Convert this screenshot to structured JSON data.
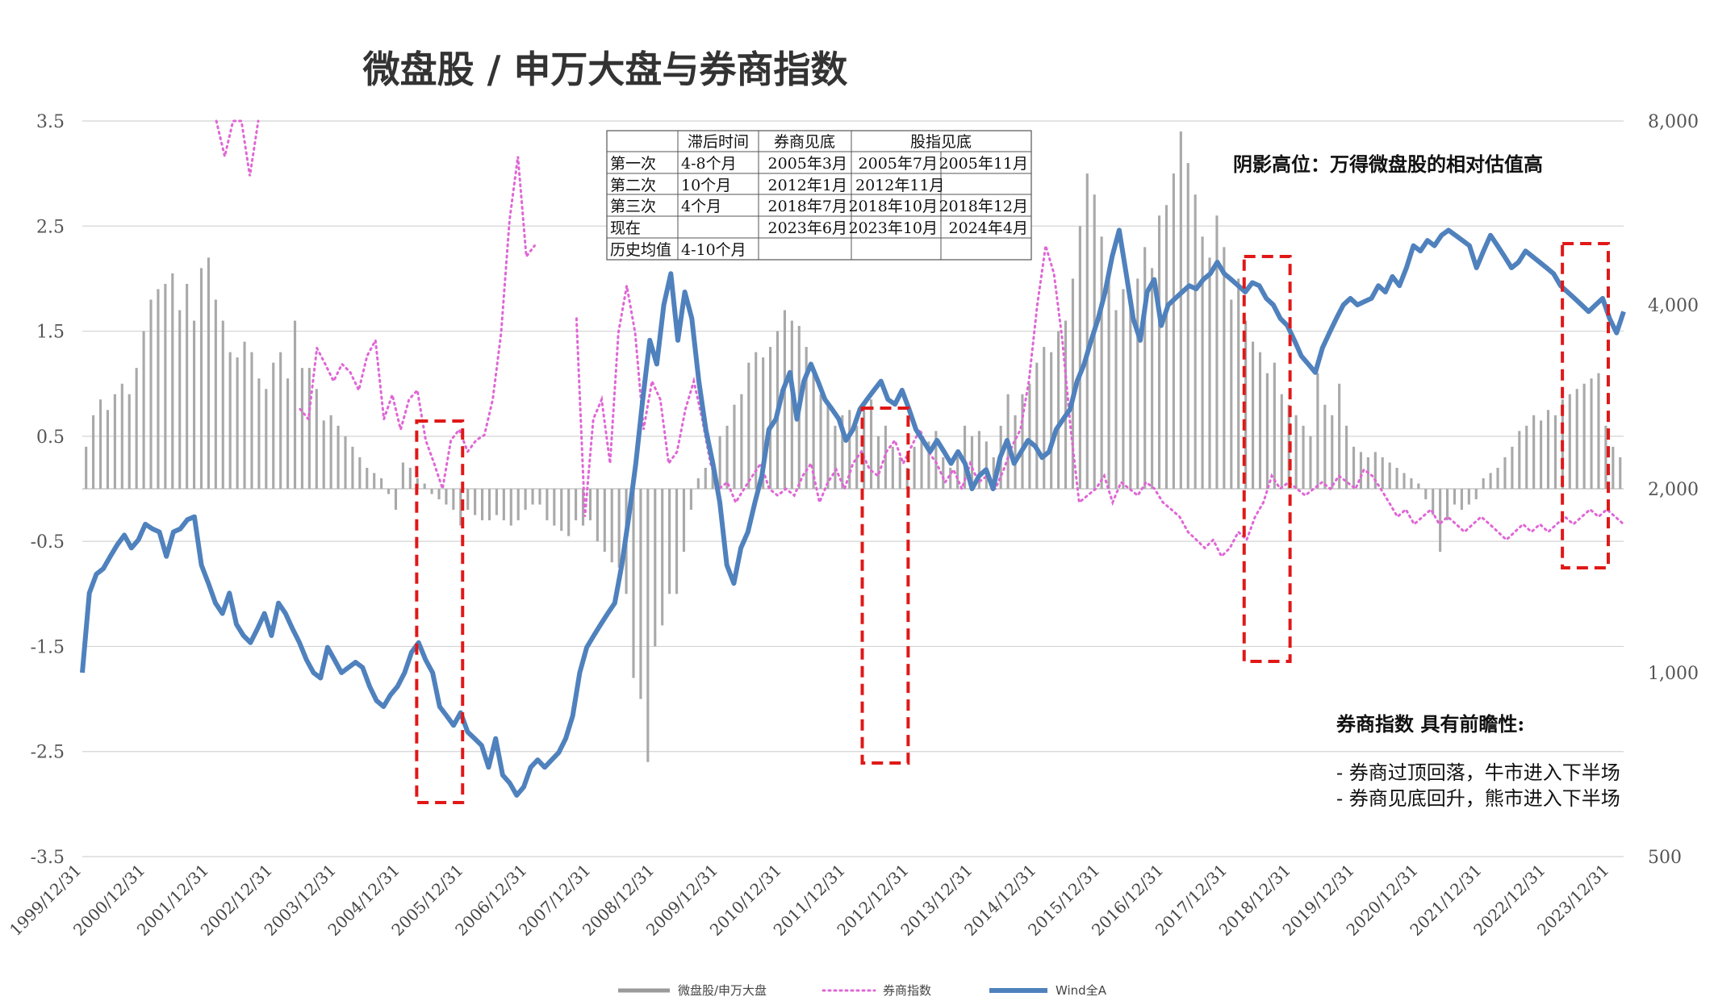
{
  "chart_data": {
    "type": "line",
    "title": "微盘股 / 申万大盘与券商指数",
    "left_axis": {
      "ticks": [
        "3.5",
        "2.5",
        "1.5",
        "0.5",
        "-0.5",
        "-1.5",
        "-2.5",
        "-3.5"
      ],
      "range": [
        -3.5,
        3.5
      ]
    },
    "right_axis": {
      "ticks": [
        "8,000",
        "4,000",
        "2,000",
        "1,000",
        "500"
      ],
      "scale": "log",
      "range": [
        500,
        8000
      ]
    },
    "x_ticks": [
      "1999/12/31",
      "2000/12/31",
      "2001/12/31",
      "2002/12/31",
      "2003/12/31",
      "2004/12/31",
      "2005/12/31",
      "2006/12/31",
      "2007/12/31",
      "2008/12/31",
      "2009/12/31",
      "2010/12/31",
      "2011/12/31",
      "2012/12/31",
      "2013/12/31",
      "2014/12/31",
      "2015/12/31",
      "2016/12/31",
      "2017/12/31",
      "2018/12/31",
      "2019/12/31",
      "2020/12/31",
      "2021/12/31",
      "2022/12/31",
      "2023/12/31"
    ],
    "legend": {
      "position": "bottom",
      "items": [
        {
          "name": "微盘股/申万大盘",
          "color": "#9a9a9a",
          "style": "bar"
        },
        {
          "name": "券商指数",
          "color": "#e066d6",
          "style": "dotted"
        },
        {
          "name": "Wind全A",
          "color": "#4f81bd",
          "style": "solid"
        }
      ]
    },
    "series": [
      {
        "name": "微盘股/申万大盘",
        "type": "bar",
        "axis": "left",
        "values": [
          0.4,
          0.7,
          0.85,
          0.75,
          0.9,
          1.0,
          0.9,
          1.15,
          1.5,
          1.8,
          1.9,
          1.95,
          2.05,
          1.7,
          1.95,
          1.6,
          2.1,
          2.2,
          1.8,
          1.6,
          1.3,
          1.25,
          1.4,
          1.3,
          1.05,
          0.95,
          1.2,
          1.3,
          1.05,
          1.6,
          1.15,
          1.15,
          0.95,
          0.65,
          0.7,
          0.6,
          0.5,
          0.4,
          0.3,
          0.2,
          0.15,
          0.1,
          -0.05,
          -0.2,
          0.25,
          0.2,
          0.1,
          0.05,
          -0.05,
          -0.1,
          -0.15,
          -0.2,
          -0.35,
          -0.2,
          -0.25,
          -0.3,
          -0.3,
          -0.25,
          -0.3,
          -0.35,
          -0.3,
          -0.2,
          -0.15,
          -0.15,
          -0.3,
          -0.35,
          -0.4,
          -0.45,
          -0.3,
          -0.35,
          -0.3,
          -0.5,
          -0.6,
          -0.7,
          -0.75,
          -1.0,
          -1.8,
          -2.0,
          -2.6,
          -1.5,
          -1.3,
          -1.0,
          -1.0,
          -0.6,
          -0.2,
          0.1,
          0.2,
          0.3,
          0.5,
          0.6,
          0.8,
          0.9,
          1.2,
          1.3,
          1.25,
          1.35,
          1.5,
          1.7,
          1.6,
          1.55,
          1.35,
          1.1,
          0.9,
          0.8,
          0.6,
          0.7,
          0.75,
          0.6,
          0.8,
          0.85,
          0.5,
          0.6,
          0.4,
          0.3,
          0.2,
          0.4,
          0.5,
          0.45,
          0.55,
          0.3,
          0.2,
          0.3,
          0.6,
          0.5,
          0.55,
          0.45,
          0.3,
          0.6,
          0.9,
          0.7,
          0.9,
          1.0,
          1.2,
          1.35,
          1.3,
          1.5,
          1.6,
          2.0,
          2.5,
          3.0,
          2.8,
          2.4,
          2.0,
          1.7,
          1.9,
          1.8,
          2.0,
          2.3,
          2.1,
          2.6,
          2.7,
          3.0,
          3.4,
          3.1,
          2.8,
          2.4,
          2.2,
          2.6,
          2.3,
          1.8,
          2.0,
          1.6,
          1.4,
          1.3,
          1.1,
          1.2,
          0.9,
          0.8,
          0.7,
          0.6,
          0.5,
          1.1,
          0.8,
          0.7,
          1.0,
          0.6,
          0.4,
          0.35,
          0.3,
          0.35,
          0.3,
          0.25,
          0.2,
          0.15,
          0.1,
          0.05,
          -0.1,
          -0.25,
          -0.6,
          -0.3,
          -0.15,
          -0.2,
          -0.15,
          -0.1,
          0.1,
          0.15,
          0.2,
          0.3,
          0.4,
          0.55,
          0.6,
          0.7,
          0.65,
          0.75,
          0.7,
          0.85,
          0.9,
          0.95,
          1.0,
          1.05,
          1.1,
          0.6,
          0.4,
          0.3
        ]
      },
      {
        "name": "券商指数",
        "type": "line",
        "axis": "right",
        "style": "dotted",
        "values": [
          null,
          null,
          null,
          null,
          null,
          null,
          null,
          null,
          null,
          null,
          null,
          null,
          null,
          null,
          null,
          null,
          15000,
          7000,
          9000,
          14000,
          6500,
          8000,
          null,
          null,
          null,
          null,
          2700,
          2600,
          3400,
          3200,
          3000,
          3200,
          3100,
          2900,
          3300,
          3500,
          2600,
          2850,
          2500,
          2800,
          2900,
          2400,
          2200,
          2000,
          2400,
          2500,
          2300,
          2400,
          2450,
          2800,
          3600,
          5500,
          7000,
          4800,
          5000,
          null,
          null,
          null,
          null,
          3800,
          1800,
          2600,
          2800,
          2200,
          3600,
          4300,
          3600,
          2500,
          3000,
          2800,
          2200,
          2300,
          2700,
          3000,
          2600,
          2200,
          2000,
          2050,
          1900,
          2000,
          2100,
          2200,
          2000,
          1950,
          2000,
          1950,
          2100,
          2200,
          1900,
          2050,
          2150,
          2000,
          2200,
          2300,
          2150,
          2100,
          2300,
          2400,
          2200,
          2350,
          2500,
          2300,
          2200,
          2050,
          2150,
          2000,
          2200,
          2050,
          2100,
          2000,
          2150,
          2350,
          2500,
          3000,
          4000,
          5000,
          4500,
          3500,
          2500,
          1900,
          1950,
          2000,
          2100,
          1900,
          2050,
          2000,
          1950,
          2050,
          2000,
          1900,
          1850,
          1800,
          1700,
          1650,
          1600,
          1650,
          1550,
          1600,
          1700,
          1650,
          1800,
          1900,
          2100,
          2000,
          2050,
          2000,
          1950,
          2000,
          2050,
          2000,
          2100,
          2050,
          2000,
          2150,
          2100,
          2000,
          1900,
          1800,
          1850,
          1750,
          1800,
          1850,
          1750,
          1800,
          1750,
          1700,
          1750,
          1800,
          1750,
          1700,
          1650,
          1700,
          1750,
          1700,
          1750,
          1700,
          1750,
          1800,
          1750,
          1800,
          1850,
          1800,
          1850,
          1800,
          1750
        ]
      },
      {
        "name": "Wind全A",
        "type": "line",
        "axis": "right",
        "style": "solid",
        "values": [
          1000,
          1350,
          1450,
          1480,
          1550,
          1620,
          1680,
          1600,
          1650,
          1750,
          1720,
          1700,
          1550,
          1700,
          1720,
          1780,
          1800,
          1500,
          1400,
          1300,
          1250,
          1350,
          1200,
          1150,
          1120,
          1180,
          1250,
          1150,
          1300,
          1250,
          1180,
          1120,
          1050,
          1000,
          980,
          1100,
          1050,
          1000,
          1020,
          1040,
          1020,
          950,
          900,
          880,
          920,
          950,
          1000,
          1080,
          1120,
          1050,
          1000,
          880,
          850,
          820,
          860,
          800,
          780,
          760,
          700,
          780,
          680,
          660,
          630,
          650,
          700,
          720,
          700,
          720,
          740,
          780,
          850,
          1000,
          1100,
          1150,
          1200,
          1250,
          1300,
          1500,
          1800,
          2200,
          2800,
          3500,
          3200,
          4000,
          4500,
          3500,
          4200,
          3800,
          3000,
          2500,
          2200,
          1900,
          1500,
          1400,
          1600,
          1700,
          1900,
          2100,
          2500,
          2600,
          2900,
          3100,
          2600,
          3000,
          3200,
          3000,
          2800,
          2700,
          2600,
          2400,
          2500,
          2700,
          2800,
          2900,
          3000,
          2800,
          2750,
          2900,
          2700,
          2500,
          2400,
          2300,
          2400,
          2300,
          2200,
          2300,
          2200,
          2000,
          2100,
          2150,
          2000,
          2250,
          2400,
          2200,
          2300,
          2400,
          2350,
          2250,
          2300,
          2500,
          2600,
          2700,
          3000,
          3200,
          3500,
          3800,
          4200,
          4800,
          5300,
          4500,
          3800,
          3500,
          4200,
          4400,
          3700,
          4000,
          4100,
          4200,
          4300,
          4250,
          4400,
          4500,
          4700,
          4500,
          4400,
          4300,
          4200,
          4350,
          4300,
          4100,
          4000,
          3800,
          3700,
          3500,
          3300,
          3200,
          3100,
          3400,
          3600,
          3800,
          4000,
          4100,
          4000,
          4050,
          4100,
          4300,
          4200,
          4450,
          4300,
          4600,
          5000,
          4900,
          5100,
          5000,
          5200,
          5300,
          5200,
          5100,
          5000,
          4600,
          4900,
          5200,
          5000,
          4800,
          4600,
          4700,
          4900,
          4800,
          4700,
          4600,
          4500,
          4300,
          4200,
          4100,
          4000,
          3900,
          4000,
          4100,
          3800,
          3600,
          3900
        ]
      }
    ],
    "highlight_boxes": [
      {
        "from": "2004/12/31",
        "to": "2005/12/31"
      },
      {
        "from": "2011/12/31",
        "to": "2012/12/31"
      },
      {
        "from": "2017/12/31",
        "to": "2018/12/31"
      },
      {
        "from": "2022/12/31",
        "to": "2023/12/31"
      }
    ],
    "info_table": {
      "header": [
        "",
        "滞后时间",
        "券商见底",
        "股指见底"
      ],
      "rows": [
        [
          "第一次",
          "4-8个月",
          "2005年3月",
          "2005年7月",
          "2005年11月"
        ],
        [
          "第二次",
          "10个月",
          "2012年1月",
          "2012年11月",
          ""
        ],
        [
          "第三次",
          "4个月",
          "2018年7月",
          "2018年10月",
          "2018年12月"
        ],
        [
          "现在",
          "",
          "2023年6月",
          "2023年10月",
          "2024年4月"
        ],
        [
          "历史均值",
          "4-10个月",
          "",
          "",
          ""
        ]
      ],
      "highlight_color": "#e02020"
    },
    "annotations": {
      "shade_note": "阴影高位：万得微盘股的相对估值高",
      "lead_title": "券商指数 具有前瞻性:",
      "lead_line1": "- 券商过顶回落，牛市进入下半场",
      "lead_line2": "- 券商见底回升，熊市进入下半场"
    }
  }
}
